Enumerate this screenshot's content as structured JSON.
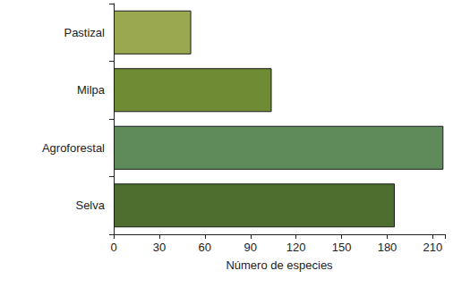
{
  "chart_data": {
    "type": "bar",
    "orientation": "horizontal",
    "categories": [
      "Pastizal",
      "Milpa",
      "Agroforestal",
      "Selva"
    ],
    "values": [
      51,
      104,
      217,
      185
    ],
    "colors": [
      "#9aa850",
      "#6f8c34",
      "#5f8a5a",
      "#4d6e2e"
    ],
    "xlabel": "Número de especies",
    "xlim": [
      0,
      218
    ],
    "xticks": [
      0,
      30,
      60,
      90,
      120,
      150,
      180,
      210
    ],
    "grid": false
  }
}
